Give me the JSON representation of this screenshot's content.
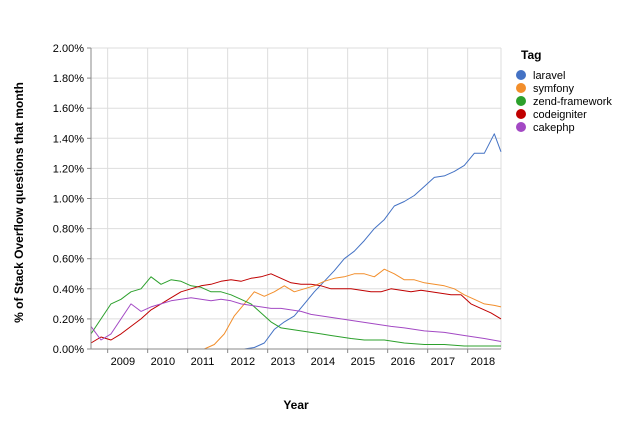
{
  "chart_data": {
    "type": "line",
    "xlabel": "Year",
    "ylabel": "% of Stack Overflow questions that month",
    "x_range": [
      "2008-08",
      "2018-11"
    ],
    "ylim": [
      0,
      2.0
    ],
    "x_ticks": [
      "2009",
      "2010",
      "2011",
      "2012",
      "2013",
      "2014",
      "2015",
      "2016",
      "2017",
      "2018"
    ],
    "y_ticks": [
      "0.00%",
      "0.20%",
      "0.40%",
      "0.60%",
      "0.80%",
      "1.00%",
      "1.20%",
      "1.40%",
      "1.60%",
      "1.80%",
      "2.00%"
    ],
    "y_tick_values": [
      0,
      0.2,
      0.4,
      0.6,
      0.8,
      1.0,
      1.2,
      1.4,
      1.6,
      1.8,
      2.0
    ],
    "grid": true,
    "legend": {
      "title": "Tag",
      "position": "right"
    },
    "series": [
      {
        "name": "laravel",
        "color": "#4472c4",
        "points": [
          [
            "2012-01",
            0.0
          ],
          [
            "2012-06",
            0.0
          ],
          [
            "2012-09",
            0.01
          ],
          [
            "2012-12",
            0.04
          ],
          [
            "2013-03",
            0.13
          ],
          [
            "2013-06",
            0.18
          ],
          [
            "2013-09",
            0.22
          ],
          [
            "2013-12",
            0.3
          ],
          [
            "2014-03",
            0.38
          ],
          [
            "2014-06",
            0.45
          ],
          [
            "2014-09",
            0.52
          ],
          [
            "2014-12",
            0.6
          ],
          [
            "2015-03",
            0.65
          ],
          [
            "2015-06",
            0.72
          ],
          [
            "2015-09",
            0.8
          ],
          [
            "2015-12",
            0.86
          ],
          [
            "2016-03",
            0.95
          ],
          [
            "2016-06",
            0.98
          ],
          [
            "2016-09",
            1.02
          ],
          [
            "2016-12",
            1.08
          ],
          [
            "2017-03",
            1.14
          ],
          [
            "2017-06",
            1.15
          ],
          [
            "2017-09",
            1.18
          ],
          [
            "2017-12",
            1.22
          ],
          [
            "2018-03",
            1.3
          ],
          [
            "2018-06",
            1.3
          ],
          [
            "2018-09",
            1.43
          ],
          [
            "2018-11",
            1.31
          ]
        ]
      },
      {
        "name": "symfony",
        "color": "#f28e2b",
        "points": [
          [
            "2008-08",
            0.0
          ],
          [
            "2009-06",
            0.0
          ],
          [
            "2010-06",
            0.0
          ],
          [
            "2011-06",
            0.0
          ],
          [
            "2011-09",
            0.03
          ],
          [
            "2011-12",
            0.1
          ],
          [
            "2012-03",
            0.22
          ],
          [
            "2012-06",
            0.3
          ],
          [
            "2012-09",
            0.38
          ],
          [
            "2012-12",
            0.35
          ],
          [
            "2013-03",
            0.38
          ],
          [
            "2013-06",
            0.42
          ],
          [
            "2013-09",
            0.38
          ],
          [
            "2013-12",
            0.4
          ],
          [
            "2014-03",
            0.42
          ],
          [
            "2014-06",
            0.45
          ],
          [
            "2014-09",
            0.47
          ],
          [
            "2014-12",
            0.48
          ],
          [
            "2015-03",
            0.5
          ],
          [
            "2015-06",
            0.5
          ],
          [
            "2015-09",
            0.48
          ],
          [
            "2015-12",
            0.53
          ],
          [
            "2016-03",
            0.5
          ],
          [
            "2016-06",
            0.46
          ],
          [
            "2016-09",
            0.46
          ],
          [
            "2016-12",
            0.44
          ],
          [
            "2017-03",
            0.43
          ],
          [
            "2017-06",
            0.42
          ],
          [
            "2017-09",
            0.4
          ],
          [
            "2017-12",
            0.36
          ],
          [
            "2018-03",
            0.33
          ],
          [
            "2018-06",
            0.3
          ],
          [
            "2018-09",
            0.29
          ],
          [
            "2018-11",
            0.28
          ]
        ]
      },
      {
        "name": "zend-framework",
        "color": "#2ca02c",
        "points": [
          [
            "2008-08",
            0.1
          ],
          [
            "2008-11",
            0.2
          ],
          [
            "2009-02",
            0.3
          ],
          [
            "2009-05",
            0.33
          ],
          [
            "2009-08",
            0.38
          ],
          [
            "2009-11",
            0.4
          ],
          [
            "2010-02",
            0.48
          ],
          [
            "2010-05",
            0.43
          ],
          [
            "2010-08",
            0.46
          ],
          [
            "2010-11",
            0.45
          ],
          [
            "2011-02",
            0.42
          ],
          [
            "2011-05",
            0.41
          ],
          [
            "2011-08",
            0.38
          ],
          [
            "2011-11",
            0.38
          ],
          [
            "2012-02",
            0.36
          ],
          [
            "2012-05",
            0.33
          ],
          [
            "2012-08",
            0.3
          ],
          [
            "2012-11",
            0.24
          ],
          [
            "2013-02",
            0.18
          ],
          [
            "2013-05",
            0.14
          ],
          [
            "2013-08",
            0.13
          ],
          [
            "2013-11",
            0.12
          ],
          [
            "2014-02",
            0.11
          ],
          [
            "2014-05",
            0.1
          ],
          [
            "2014-08",
            0.09
          ],
          [
            "2014-11",
            0.08
          ],
          [
            "2015-02",
            0.07
          ],
          [
            "2015-06",
            0.06
          ],
          [
            "2015-12",
            0.06
          ],
          [
            "2016-06",
            0.04
          ],
          [
            "2016-12",
            0.03
          ],
          [
            "2017-06",
            0.03
          ],
          [
            "2017-12",
            0.02
          ],
          [
            "2018-06",
            0.02
          ],
          [
            "2018-11",
            0.02
          ]
        ]
      },
      {
        "name": "codeigniter",
        "color": "#c00000",
        "points": [
          [
            "2008-08",
            0.04
          ],
          [
            "2008-11",
            0.08
          ],
          [
            "2009-02",
            0.06
          ],
          [
            "2009-05",
            0.1
          ],
          [
            "2009-08",
            0.15
          ],
          [
            "2009-11",
            0.2
          ],
          [
            "2010-02",
            0.26
          ],
          [
            "2010-05",
            0.3
          ],
          [
            "2010-08",
            0.34
          ],
          [
            "2010-11",
            0.38
          ],
          [
            "2011-02",
            0.4
          ],
          [
            "2011-05",
            0.42
          ],
          [
            "2011-08",
            0.43
          ],
          [
            "2011-11",
            0.45
          ],
          [
            "2012-02",
            0.46
          ],
          [
            "2012-05",
            0.45
          ],
          [
            "2012-08",
            0.47
          ],
          [
            "2012-11",
            0.48
          ],
          [
            "2013-02",
            0.5
          ],
          [
            "2013-05",
            0.47
          ],
          [
            "2013-08",
            0.44
          ],
          [
            "2013-11",
            0.43
          ],
          [
            "2014-02",
            0.43
          ],
          [
            "2014-05",
            0.42
          ],
          [
            "2014-08",
            0.4
          ],
          [
            "2014-11",
            0.4
          ],
          [
            "2015-02",
            0.4
          ],
          [
            "2015-05",
            0.39
          ],
          [
            "2015-08",
            0.38
          ],
          [
            "2015-11",
            0.38
          ],
          [
            "2016-02",
            0.4
          ],
          [
            "2016-05",
            0.39
          ],
          [
            "2016-08",
            0.38
          ],
          [
            "2016-11",
            0.39
          ],
          [
            "2017-02",
            0.38
          ],
          [
            "2017-05",
            0.37
          ],
          [
            "2017-08",
            0.36
          ],
          [
            "2017-11",
            0.36
          ],
          [
            "2018-02",
            0.3
          ],
          [
            "2018-05",
            0.27
          ],
          [
            "2018-08",
            0.24
          ],
          [
            "2018-11",
            0.2
          ]
        ]
      },
      {
        "name": "cakephp",
        "color": "#a349c4",
        "points": [
          [
            "2008-08",
            0.15
          ],
          [
            "2008-11",
            0.06
          ],
          [
            "2009-02",
            0.1
          ],
          [
            "2009-05",
            0.2
          ],
          [
            "2009-08",
            0.3
          ],
          [
            "2009-11",
            0.25
          ],
          [
            "2010-02",
            0.28
          ],
          [
            "2010-05",
            0.3
          ],
          [
            "2010-08",
            0.32
          ],
          [
            "2010-11",
            0.33
          ],
          [
            "2011-02",
            0.34
          ],
          [
            "2011-05",
            0.33
          ],
          [
            "2011-08",
            0.32
          ],
          [
            "2011-11",
            0.33
          ],
          [
            "2012-02",
            0.32
          ],
          [
            "2012-05",
            0.3
          ],
          [
            "2012-08",
            0.29
          ],
          [
            "2012-11",
            0.28
          ],
          [
            "2013-02",
            0.27
          ],
          [
            "2013-05",
            0.27
          ],
          [
            "2013-08",
            0.26
          ],
          [
            "2013-11",
            0.25
          ],
          [
            "2014-02",
            0.23
          ],
          [
            "2014-05",
            0.22
          ],
          [
            "2014-08",
            0.21
          ],
          [
            "2014-11",
            0.2
          ],
          [
            "2015-02",
            0.19
          ],
          [
            "2015-05",
            0.18
          ],
          [
            "2015-08",
            0.17
          ],
          [
            "2015-11",
            0.16
          ],
          [
            "2016-02",
            0.15
          ],
          [
            "2016-06",
            0.14
          ],
          [
            "2016-12",
            0.12
          ],
          [
            "2017-06",
            0.11
          ],
          [
            "2017-12",
            0.09
          ],
          [
            "2018-06",
            0.07
          ],
          [
            "2018-11",
            0.05
          ]
        ]
      }
    ]
  }
}
